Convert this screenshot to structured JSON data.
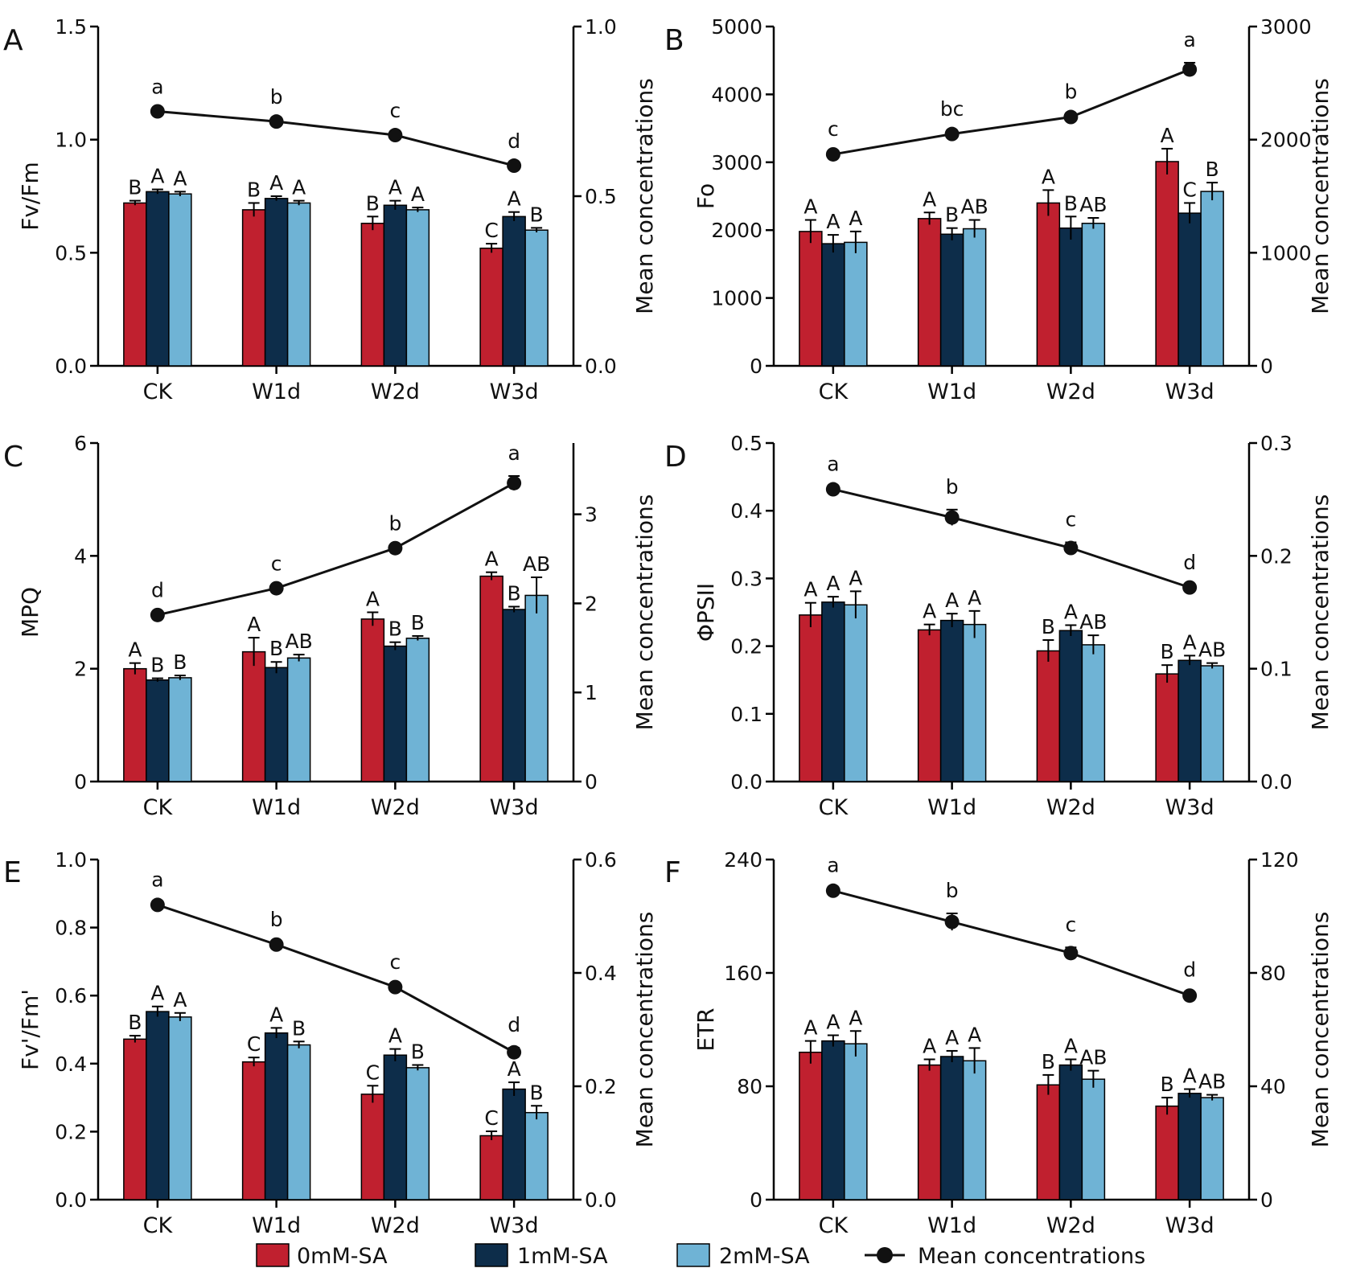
{
  "legend": {
    "items": [
      {
        "label": "0mM-SA",
        "color": "#c0202f",
        "kind": "bar"
      },
      {
        "label": "1mM-SA",
        "color": "#0d2d4a",
        "kind": "bar"
      },
      {
        "label": "2mM-SA",
        "color": "#6fb3d5",
        "kind": "bar"
      },
      {
        "label": "Mean concentrations",
        "color": "#111111",
        "kind": "line"
      }
    ]
  },
  "chart_data": [
    {
      "panel": "A",
      "type": "bar",
      "categories": [
        "CK",
        "W1d",
        "W2d",
        "W3d"
      ],
      "ylabel": "Fv/Fm",
      "ylim": [
        0,
        1.5
      ],
      "yticks": [
        "0.0",
        "0.5",
        "1.0",
        "1.5"
      ],
      "y2label": "Mean concentrations",
      "y2lim": [
        0,
        1.0
      ],
      "y2ticks": [
        "0.0",
        "0.5",
        "1.0"
      ],
      "series": [
        {
          "name": "0mM-SA",
          "values": [
            0.72,
            0.69,
            0.63,
            0.52
          ],
          "errors": [
            0.01,
            0.03,
            0.03,
            0.02
          ],
          "labels": [
            "B",
            "B",
            "B",
            "C"
          ]
        },
        {
          "name": "1mM-SA",
          "values": [
            0.77,
            0.74,
            0.71,
            0.66
          ],
          "errors": [
            0.01,
            0.01,
            0.02,
            0.02
          ],
          "labels": [
            "A",
            "A",
            "A",
            "A"
          ]
        },
        {
          "name": "2mM-SA",
          "values": [
            0.76,
            0.72,
            0.69,
            0.6
          ],
          "errors": [
            0.01,
            0.01,
            0.01,
            0.01
          ],
          "labels": [
            "A",
            "A",
            "A",
            "B"
          ]
        }
      ],
      "mean_line": {
        "name": "Mean concentrations",
        "values": [
          0.75,
          0.72,
          0.68,
          0.59
        ],
        "errors": [
          0.005,
          0.005,
          0.005,
          0.005
        ],
        "labels": [
          "a",
          "b",
          "c",
          "d"
        ]
      }
    },
    {
      "panel": "B",
      "type": "bar",
      "categories": [
        "CK",
        "W1d",
        "W2d",
        "W3d"
      ],
      "ylabel": "Fo",
      "ylim": [
        0,
        5000
      ],
      "yticks": [
        "0",
        "1000",
        "2000",
        "3000",
        "4000",
        "5000"
      ],
      "y2label": "Mean concentrations",
      "y2lim": [
        0,
        3000
      ],
      "y2ticks": [
        "0",
        "1000",
        "2000",
        "3000"
      ],
      "series": [
        {
          "name": "0mM-SA",
          "values": [
            1980,
            2170,
            2400,
            3010
          ],
          "errors": [
            170,
            90,
            190,
            190
          ],
          "labels": [
            "A",
            "A",
            "A",
            "A"
          ]
        },
        {
          "name": "1mM-SA",
          "values": [
            1800,
            1940,
            2030,
            2250
          ],
          "errors": [
            130,
            90,
            170,
            150
          ],
          "labels": [
            "A",
            "B",
            "B",
            "C"
          ]
        },
        {
          "name": "2mM-SA",
          "values": [
            1820,
            2020,
            2100,
            2570
          ],
          "errors": [
            160,
            130,
            80,
            130
          ],
          "labels": [
            "A",
            "AB",
            "AB",
            "B"
          ]
        }
      ],
      "mean_line": {
        "name": "Mean concentrations",
        "values": [
          1870,
          2050,
          2200,
          2620
        ],
        "errors": [
          20,
          20,
          20,
          60
        ],
        "labels": [
          "c",
          "bc",
          "b",
          "a"
        ]
      }
    },
    {
      "panel": "C",
      "type": "bar",
      "categories": [
        "CK",
        "W1d",
        "W2d",
        "W3d"
      ],
      "ylabel": "MPQ",
      "ylim": [
        0,
        6
      ],
      "yticks": [
        "0",
        "2",
        "4",
        "6"
      ],
      "y2label": "Mean concentrations",
      "y2lim": [
        0,
        3.8
      ],
      "y2ticks": [
        "0",
        "1",
        "2",
        "3"
      ],
      "series": [
        {
          "name": "0mM-SA",
          "values": [
            2.0,
            2.3,
            2.88,
            3.64
          ],
          "errors": [
            0.1,
            0.25,
            0.12,
            0.07
          ],
          "labels": [
            "A",
            "A",
            "A",
            "A"
          ]
        },
        {
          "name": "1mM-SA",
          "values": [
            1.8,
            2.02,
            2.4,
            3.05
          ],
          "errors": [
            0.03,
            0.1,
            0.07,
            0.05
          ],
          "labels": [
            "B",
            "B",
            "B",
            "B"
          ]
        },
        {
          "name": "2mM-SA",
          "values": [
            1.84,
            2.19,
            2.54,
            3.3
          ],
          "errors": [
            0.04,
            0.06,
            0.04,
            0.32
          ],
          "labels": [
            "B",
            "AB",
            "B",
            "AB"
          ]
        }
      ],
      "mean_line": {
        "name": "Mean concentrations",
        "values": [
          1.87,
          2.17,
          2.62,
          3.35
        ],
        "errors": [
          0.02,
          0.02,
          0.02,
          0.08
        ],
        "labels": [
          "d",
          "c",
          "b",
          "a"
        ]
      }
    },
    {
      "panel": "D",
      "type": "bar",
      "categories": [
        "CK",
        "W1d",
        "W2d",
        "W3d"
      ],
      "ylabel": "ΦPSII",
      "ylim": [
        0,
        0.5
      ],
      "yticks": [
        "0.0",
        "0.1",
        "0.2",
        "0.3",
        "0.4",
        "0.5"
      ],
      "y2label": "Mean concentrations",
      "y2lim": [
        0,
        0.3
      ],
      "y2ticks": [
        "0.0",
        "0.1",
        "0.2",
        "0.3"
      ],
      "series": [
        {
          "name": "0mM-SA",
          "values": [
            0.246,
            0.224,
            0.193,
            0.159
          ],
          "errors": [
            0.018,
            0.008,
            0.016,
            0.013
          ],
          "labels": [
            "A",
            "A",
            "B",
            "B"
          ]
        },
        {
          "name": "1mM-SA",
          "values": [
            0.265,
            0.238,
            0.223,
            0.179
          ],
          "errors": [
            0.008,
            0.01,
            0.008,
            0.007
          ],
          "labels": [
            "A",
            "A",
            "A",
            "A"
          ]
        },
        {
          "name": "2mM-SA",
          "values": [
            0.261,
            0.232,
            0.202,
            0.171
          ],
          "errors": [
            0.02,
            0.02,
            0.014,
            0.004
          ],
          "labels": [
            "A",
            "A",
            "AB",
            "AB"
          ]
        }
      ],
      "mean_line": {
        "name": "Mean concentrations",
        "values": [
          0.259,
          0.234,
          0.207,
          0.172
        ],
        "errors": [
          0.002,
          0.007,
          0.005,
          0.002
        ],
        "labels": [
          "a",
          "b",
          "c",
          "d"
        ]
      }
    },
    {
      "panel": "E",
      "type": "bar",
      "categories": [
        "CK",
        "W1d",
        "W2d",
        "W3d"
      ],
      "ylabel": "Fv'/Fm'",
      "ylim": [
        0,
        1.0
      ],
      "yticks": [
        "0.0",
        "0.2",
        "0.4",
        "0.6",
        "0.8",
        "1.0"
      ],
      "y2label": "Mean concentrations",
      "y2lim": [
        0,
        0.6
      ],
      "y2ticks": [
        "0.0",
        "0.2",
        "0.4",
        "0.6"
      ],
      "series": [
        {
          "name": "0mM-SA",
          "values": [
            0.472,
            0.405,
            0.31,
            0.188
          ],
          "errors": [
            0.01,
            0.013,
            0.025,
            0.013
          ],
          "labels": [
            "B",
            "C",
            "C",
            "C"
          ]
        },
        {
          "name": "1mM-SA",
          "values": [
            0.553,
            0.49,
            0.425,
            0.325
          ],
          "errors": [
            0.015,
            0.015,
            0.018,
            0.02
          ],
          "labels": [
            "A",
            "A",
            "A",
            "A"
          ]
        },
        {
          "name": "2mM-SA",
          "values": [
            0.537,
            0.455,
            0.388,
            0.256
          ],
          "errors": [
            0.012,
            0.01,
            0.008,
            0.02
          ],
          "labels": [
            "A",
            "B",
            "B",
            "B"
          ]
        }
      ],
      "mean_line": {
        "name": "Mean concentrations",
        "values": [
          0.52,
          0.45,
          0.375,
          0.26
        ],
        "errors": [
          0.004,
          0.004,
          0.004,
          0.008
        ],
        "labels": [
          "a",
          "b",
          "c",
          "d"
        ]
      }
    },
    {
      "panel": "F",
      "type": "bar",
      "categories": [
        "CK",
        "W1d",
        "W2d",
        "W3d"
      ],
      "ylabel": "ETR",
      "ylim": [
        0,
        240
      ],
      "yticks": [
        "0",
        "80",
        "160",
        "240"
      ],
      "y2label": "Mean concentrations",
      "y2lim": [
        0,
        120
      ],
      "y2ticks": [
        "0",
        "40",
        "80",
        "120"
      ],
      "series": [
        {
          "name": "0mM-SA",
          "values": [
            104,
            95,
            81,
            66
          ],
          "errors": [
            8,
            4,
            7,
            6
          ],
          "labels": [
            "A",
            "A",
            "B",
            "B"
          ]
        },
        {
          "name": "1mM-SA",
          "values": [
            112,
            101,
            95,
            75
          ],
          "errors": [
            4,
            4,
            4,
            3
          ],
          "labels": [
            "A",
            "A",
            "A",
            "A"
          ]
        },
        {
          "name": "2mM-SA",
          "values": [
            110,
            98,
            85,
            72
          ],
          "errors": [
            9,
            9,
            6,
            2
          ],
          "labels": [
            "A",
            "A",
            "AB",
            "AB"
          ]
        }
      ],
      "mean_line": {
        "name": "Mean concentrations",
        "values": [
          109,
          98,
          87,
          72
        ],
        "errors": [
          1,
          3,
          2,
          1
        ],
        "labels": [
          "a",
          "b",
          "c",
          "d"
        ]
      }
    }
  ]
}
